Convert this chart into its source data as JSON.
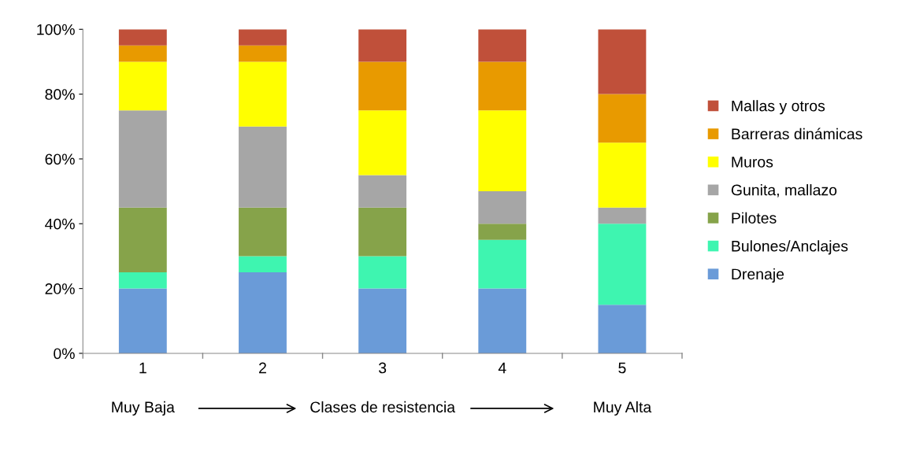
{
  "chart_data": {
    "type": "bar",
    "stacked": true,
    "xlabel": "Clases de resistencia",
    "categories": [
      "1",
      "2",
      "3",
      "4",
      "5"
    ],
    "series": [
      {
        "name": "Drenaje",
        "color": "#6a9bd8",
        "values": [
          20,
          25,
          20,
          20,
          15
        ]
      },
      {
        "name": "Bulones/Anclajes",
        "color": "#3ef5b0",
        "values": [
          5,
          5,
          10,
          15,
          25
        ]
      },
      {
        "name": "Pilotes",
        "color": "#86a34a",
        "values": [
          20,
          15,
          15,
          5,
          0
        ]
      },
      {
        "name": "Gunita, mallazo",
        "color": "#a6a6a6",
        "values": [
          30,
          25,
          10,
          10,
          5
        ]
      },
      {
        "name": "Muros",
        "color": "#ffff00",
        "values": [
          15,
          20,
          20,
          25,
          20
        ]
      },
      {
        "name": "Barreras dinámicas",
        "color": "#e89a00",
        "values": [
          5,
          5,
          15,
          15,
          15
        ]
      },
      {
        "name": "Mallas y otros",
        "color": "#c0503a",
        "values": [
          5,
          5,
          10,
          10,
          20
        ]
      }
    ],
    "ylim": [
      0,
      100
    ],
    "yticks": [
      {
        "value": 0,
        "label": "0%"
      },
      {
        "value": 20,
        "label": "20%"
      },
      {
        "value": 40,
        "label": "40%"
      },
      {
        "value": 60,
        "label": "60%"
      },
      {
        "value": 80,
        "label": "80%"
      },
      {
        "value": 100,
        "label": "100%"
      }
    ],
    "annotations": [
      "Muy Baja",
      "Muy Alta"
    ],
    "grid": false,
    "legend": "right"
  }
}
